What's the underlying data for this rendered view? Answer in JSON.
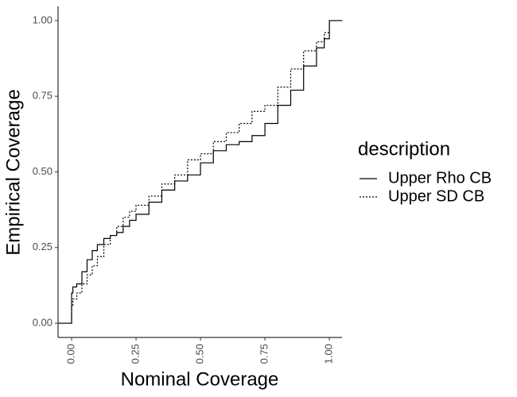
{
  "chart_data": {
    "type": "line",
    "step": "hv",
    "xlabel": "Nominal Coverage",
    "ylabel": "Empirical Coverage",
    "legend_title": "description",
    "legend_position": "right",
    "x": [
      -0.05,
      0,
      0.005,
      0.02,
      0.04,
      0.06,
      0.08,
      0.1,
      0.125,
      0.15,
      0.175,
      0.2,
      0.225,
      0.25,
      0.3,
      0.35,
      0.4,
      0.45,
      0.5,
      0.55,
      0.6,
      0.65,
      0.7,
      0.75,
      0.8,
      0.85,
      0.9,
      0.95,
      0.98,
      1.0,
      1.05
    ],
    "series": [
      {
        "name": "Upper Rho CB",
        "color": "#000000",
        "linestyle": "solid",
        "values": [
          0,
          0.1,
          0.12,
          0.13,
          0.17,
          0.21,
          0.24,
          0.26,
          0.28,
          0.29,
          0.3,
          0.32,
          0.34,
          0.36,
          0.4,
          0.44,
          0.47,
          0.49,
          0.53,
          0.57,
          0.59,
          0.6,
          0.62,
          0.66,
          0.72,
          0.77,
          0.85,
          0.91,
          0.94,
          1.0,
          1.0
        ]
      },
      {
        "name": "Upper SD CB",
        "color": "#000000",
        "linestyle": "dotted",
        "values": [
          0,
          0.06,
          0.08,
          0.1,
          0.13,
          0.16,
          0.19,
          0.22,
          0.26,
          0.29,
          0.32,
          0.35,
          0.37,
          0.39,
          0.42,
          0.46,
          0.49,
          0.54,
          0.56,
          0.6,
          0.63,
          0.66,
          0.7,
          0.72,
          0.78,
          0.84,
          0.9,
          0.93,
          0.96,
          1.0,
          1.0
        ]
      }
    ],
    "xlim": [
      -0.0525,
      1.049
    ],
    "ylim": [
      -0.047,
      1.047
    ],
    "xticks": [
      {
        "value": 0,
        "label": "0.00"
      },
      {
        "value": 0.25,
        "label": "0.25"
      },
      {
        "value": 0.5,
        "label": "0.50"
      },
      {
        "value": 0.75,
        "label": "0.75"
      },
      {
        "value": 1,
        "label": "1.00"
      }
    ],
    "yticks": [
      {
        "value": 0,
        "label": "0.00"
      },
      {
        "value": 0.25,
        "label": "0.25"
      },
      {
        "value": 0.5,
        "label": "0.50"
      },
      {
        "value": 0.75,
        "label": "0.75"
      },
      {
        "value": 1,
        "label": "1.00"
      }
    ],
    "grid": false
  }
}
